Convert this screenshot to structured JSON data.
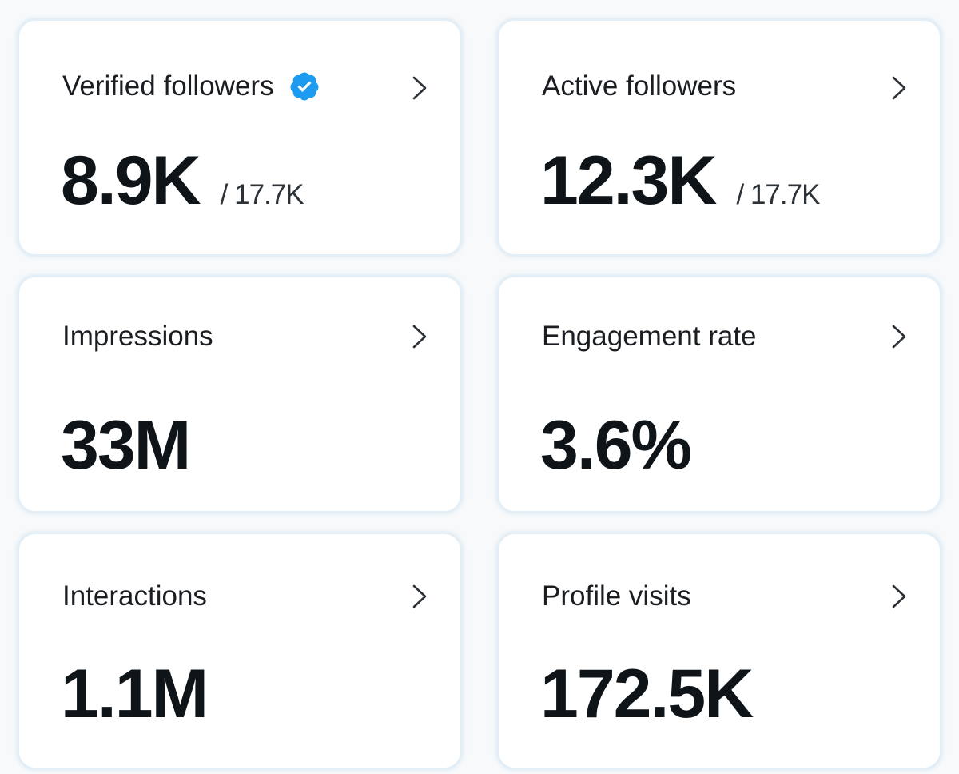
{
  "cards": [
    {
      "title": "Verified followers",
      "value": "8.9K",
      "subvalue": "/ 17.7K",
      "badge_icon": "verified-badge-icon",
      "badge_color": "#1d9bf0"
    },
    {
      "title": "Active followers",
      "value": "12.3K",
      "subvalue": "/ 17.7K"
    },
    {
      "title": "Impressions",
      "value": "33M"
    },
    {
      "title": "Engagement rate",
      "value": "3.6%"
    },
    {
      "title": "Interactions",
      "value": "1.1M"
    },
    {
      "title": "Profile visits",
      "value": "172.5K"
    }
  ],
  "icons": {
    "chevron": "chevron-right-icon",
    "verified": "verified-badge-icon"
  }
}
